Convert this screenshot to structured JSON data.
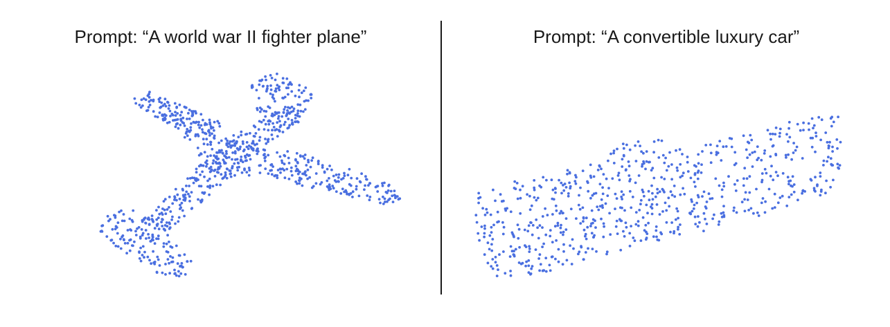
{
  "figure": {
    "left_caption": "Prompt: “A world war II fighter plane”",
    "right_caption": "Prompt: “A convertible luxury car”"
  },
  "style": {
    "point_color": "#4a6fe0",
    "text_color": "#1a1a1a",
    "background": "#ffffff"
  }
}
